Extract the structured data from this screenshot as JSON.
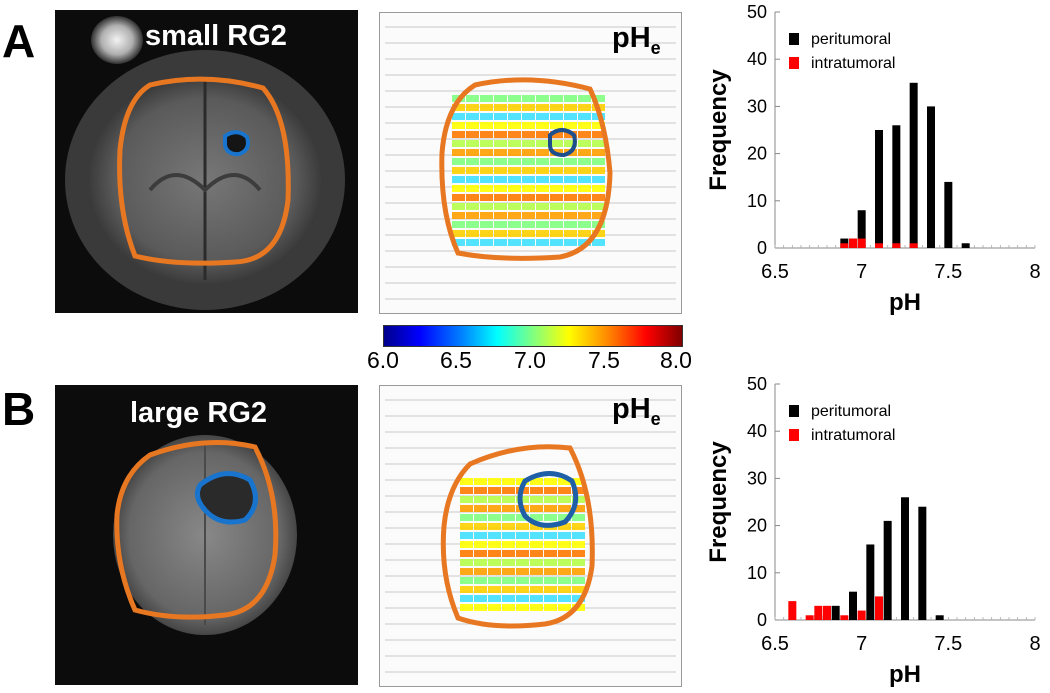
{
  "panels": [
    {
      "letter": "A",
      "mri_label": "small RG2",
      "map_label": "pH",
      "map_label_sub": "e"
    },
    {
      "letter": "B",
      "mri_label": "large RG2",
      "map_label": "pH",
      "map_label_sub": "e"
    }
  ],
  "colorbar": {
    "ticks": [
      "6.0",
      "6.5",
      "7.0",
      "7.5",
      "8.0"
    ],
    "min": 6.0,
    "max": 8.0
  },
  "colors": {
    "tumor_outline": "#1874cd",
    "brain_outline": "#e87722",
    "peritumoral": "#000000",
    "intratumoral": "#ff0000"
  },
  "chart_data": [
    {
      "type": "bar",
      "panel": "A",
      "xlabel": "pH",
      "ylabel": "Frequency",
      "xlim": [
        6.5,
        8
      ],
      "ylim": [
        0,
        50
      ],
      "xticks": [
        "6.5",
        "7",
        "7.5",
        "8"
      ],
      "yticks": [
        "0",
        "10",
        "20",
        "30",
        "40",
        "50"
      ],
      "legend": [
        "peritumoral",
        "intratumoral"
      ],
      "legend_position": "top-left",
      "series": [
        {
          "name": "peritumoral",
          "x": [
            6.9,
            6.95,
            7.0,
            7.1,
            7.2,
            7.3,
            7.4,
            7.5,
            7.6,
            7.7
          ],
          "values": [
            2,
            2,
            8,
            25,
            26,
            35,
            30,
            14,
            1,
            0
          ]
        },
        {
          "name": "intratumoral",
          "x": [
            6.9,
            6.95,
            7.0,
            7.1,
            7.2,
            7.3
          ],
          "values": [
            1,
            2,
            2,
            1,
            1,
            1
          ]
        }
      ]
    },
    {
      "type": "bar",
      "panel": "B",
      "xlabel": "pH",
      "ylabel": "Frequency",
      "xlim": [
        6.5,
        8
      ],
      "ylim": [
        0,
        50
      ],
      "xticks": [
        "6.5",
        "7",
        "7.5",
        "8"
      ],
      "yticks": [
        "0",
        "10",
        "20",
        "30",
        "40",
        "50"
      ],
      "legend": [
        "peritumoral",
        "intratumoral"
      ],
      "legend_position": "top-left",
      "series": [
        {
          "name": "peritumoral",
          "x": [
            6.75,
            6.85,
            6.95,
            7.05,
            7.15,
            7.25,
            7.35,
            7.45
          ],
          "values": [
            1,
            3,
            6,
            16,
            21,
            26,
            24,
            1
          ]
        },
        {
          "name": "intratumoral",
          "x": [
            6.6,
            6.7,
            6.75,
            6.8,
            6.9,
            7.0,
            7.1
          ],
          "values": [
            4,
            1,
            3,
            3,
            1,
            2,
            5
          ]
        }
      ]
    }
  ]
}
